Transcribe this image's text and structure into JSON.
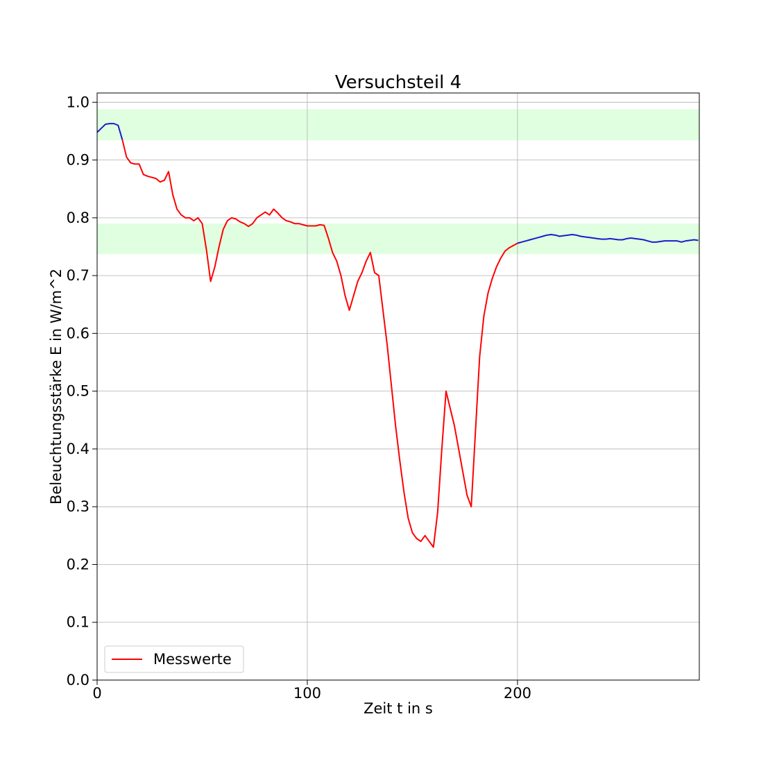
{
  "chart_data": {
    "type": "line",
    "title": "Versuchsteil 4",
    "xlabel": "Zeit t in s",
    "ylabel": "Beleuchtungsstärke E in W/m^2",
    "xlim": [
      0,
      286.5
    ],
    "ylim": [
      0,
      1.016
    ],
    "xticks": [
      0,
      100,
      200
    ],
    "yticks": [
      {
        "value": 0,
        "label": "0.0"
      },
      0.1,
      0.2,
      0.3,
      0.4,
      0.5,
      0.6,
      0.7,
      0.8,
      0.9,
      {
        "value": 1,
        "label": "1.0"
      }
    ],
    "grid": true,
    "legend": "lower left",
    "bands": [
      {
        "ymin": 0.934,
        "ymax": 0.988,
        "color": "#e0ffe0"
      },
      {
        "ymin": 0.737,
        "ymax": 0.79,
        "color": "#e0ffe0"
      }
    ],
    "x": [
      0,
      2,
      4,
      6,
      8,
      10,
      12,
      14,
      16,
      18,
      20,
      22,
      24,
      26,
      28,
      30,
      32,
      34,
      36,
      38,
      40,
      42,
      44,
      46,
      48,
      50,
      52,
      54,
      56,
      58,
      60,
      62,
      64,
      66,
      68,
      70,
      72,
      74,
      76,
      78,
      80,
      82,
      84,
      86,
      88,
      90,
      92,
      94,
      96,
      98,
      100,
      102,
      104,
      106,
      108,
      110,
      112,
      114,
      116,
      118,
      120,
      122,
      124,
      126,
      128,
      130,
      132,
      134,
      136,
      138,
      140,
      142,
      144,
      146,
      148,
      150,
      152,
      154,
      156,
      158,
      160,
      162,
      164,
      166,
      168,
      170,
      172,
      174,
      176,
      178,
      180,
      182,
      184,
      186,
      188,
      190,
      192,
      194,
      196,
      198,
      200,
      202,
      204,
      206,
      208,
      210,
      212,
      214,
      216,
      218,
      220,
      222,
      224,
      226,
      228,
      230,
      232,
      234,
      236,
      238,
      240,
      242,
      244,
      246,
      248,
      250,
      252,
      254,
      256,
      258,
      260,
      262,
      264,
      266,
      268,
      270,
      272,
      274,
      276,
      278,
      280,
      282,
      284,
      286
    ],
    "series": [
      {
        "name": "Messwerte",
        "color": "#ff0000",
        "values": [
          null,
          null,
          null,
          null,
          null,
          null,
          0.935,
          0.905,
          0.895,
          0.893,
          0.893,
          0.875,
          0.872,
          0.87,
          0.868,
          0.862,
          0.865,
          0.88,
          0.84,
          0.815,
          0.805,
          0.8,
          0.8,
          0.795,
          0.8,
          0.79,
          0.745,
          0.69,
          0.715,
          0.75,
          0.78,
          0.795,
          0.8,
          0.798,
          0.793,
          0.79,
          0.785,
          0.79,
          0.8,
          0.805,
          0.81,
          0.805,
          0.815,
          0.808,
          0.8,
          0.795,
          0.793,
          0.79,
          0.79,
          0.788,
          0.786,
          0.786,
          0.786,
          0.788,
          0.787,
          0.765,
          0.74,
          0.725,
          0.7,
          0.665,
          0.64,
          0.665,
          0.69,
          0.705,
          0.725,
          0.74,
          0.705,
          0.7,
          0.64,
          0.58,
          0.51,
          0.44,
          0.38,
          0.325,
          0.28,
          0.255,
          0.245,
          0.24,
          0.25,
          0.24,
          0.23,
          0.29,
          0.4,
          0.5,
          0.47,
          0.44,
          0.4,
          0.36,
          0.32,
          0.3,
          0.43,
          0.56,
          0.63,
          0.67,
          0.695,
          0.715,
          0.73,
          0.742,
          0.748,
          0.752,
          0.756,
          null,
          null,
          null,
          null,
          null,
          null,
          null,
          null,
          null,
          null,
          null,
          null,
          null,
          null,
          null,
          null,
          null,
          null,
          null,
          null,
          null,
          null,
          null,
          null,
          null,
          null,
          null,
          null,
          null,
          null,
          null,
          null,
          null,
          null,
          null,
          null,
          null,
          null,
          null,
          null,
          null,
          null,
          null
        ]
      },
      {
        "color": "#1a1acc",
        "values": [
          0.948,
          0.955,
          0.962,
          0.963,
          0.963,
          0.96,
          0.935,
          null,
          null,
          null,
          null,
          null,
          null,
          null,
          null,
          null,
          null,
          null,
          null,
          null,
          null,
          null,
          null,
          null,
          null,
          null,
          null,
          null,
          null,
          null,
          null,
          null,
          null,
          null,
          null,
          null,
          null,
          null,
          null,
          null,
          null,
          null,
          null,
          null,
          null,
          null,
          null,
          null,
          null,
          null,
          null,
          null,
          null,
          null,
          null,
          null,
          null,
          null,
          null,
          null,
          null,
          null,
          null,
          null,
          null,
          null,
          null,
          null,
          null,
          null,
          null,
          null,
          null,
          null,
          null,
          null,
          null,
          null,
          null,
          null,
          null,
          null,
          null,
          null,
          null,
          null,
          null,
          null,
          null,
          null,
          null,
          null,
          null,
          null,
          null,
          null,
          null,
          null,
          null,
          null,
          0.756,
          0.758,
          0.76,
          0.762,
          0.764,
          0.766,
          0.768,
          0.77,
          0.771,
          0.77,
          0.768,
          0.769,
          0.77,
          0.771,
          0.77,
          0.768,
          0.767,
          0.766,
          0.765,
          0.764,
          0.763,
          0.763,
          0.764,
          0.763,
          0.762,
          0.762,
          0.764,
          0.765,
          0.764,
          0.763,
          0.762,
          0.76,
          0.758,
          0.758,
          0.759,
          0.76,
          0.76,
          0.76,
          0.76,
          0.758,
          0.76,
          0.761,
          0.762,
          0.761
        ]
      }
    ]
  }
}
